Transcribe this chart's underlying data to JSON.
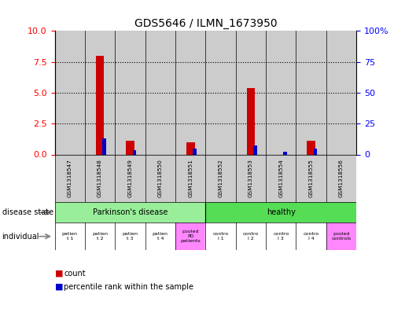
{
  "title": "GDS5646 / ILMN_1673950",
  "samples": [
    "GSM1318547",
    "GSM1318548",
    "GSM1318549",
    "GSM1318550",
    "GSM1318551",
    "GSM1318552",
    "GSM1318553",
    "GSM1318554",
    "GSM1318555",
    "GSM1318556"
  ],
  "count_values": [
    0.0,
    8.0,
    1.1,
    0.0,
    1.0,
    0.0,
    5.4,
    0.0,
    1.1,
    0.0
  ],
  "percentile_values": [
    0.0,
    13.0,
    3.5,
    0.0,
    4.5,
    0.0,
    7.0,
    2.0,
    5.0,
    0.0
  ],
  "count_color": "#cc0000",
  "percentile_color": "#0000cc",
  "ylim_left": [
    0,
    10
  ],
  "ylim_right": [
    0,
    100
  ],
  "yticks_left": [
    0,
    2.5,
    5.0,
    7.5,
    10
  ],
  "yticks_right": [
    0,
    25,
    50,
    75,
    100
  ],
  "disease_state_label": "disease state",
  "individual_label": "individual",
  "legend_count": "count",
  "legend_percentile": "percentile rank within the sample",
  "bar_bg_color": "#cccccc",
  "pd_group_color": "#99ee99",
  "healthy_group_color": "#55dd55",
  "pooled_cell_color": "#ff88ff",
  "normal_cell_color": "#ffffff",
  "individual_labels": [
    "patien\nt 1",
    "patien\nt 2",
    "patien\nt 3",
    "patien\nt 4",
    "pooled\nPD\npatients",
    "contro\nl 1",
    "contro\nl 2",
    "contro\nl 3",
    "contro\nl 4",
    "pooled\ncontrols"
  ],
  "individual_cell_colors": [
    "#ffffff",
    "#ffffff",
    "#ffffff",
    "#ffffff",
    "#ff88ff",
    "#ffffff",
    "#ffffff",
    "#ffffff",
    "#ffffff",
    "#ff88ff"
  ]
}
